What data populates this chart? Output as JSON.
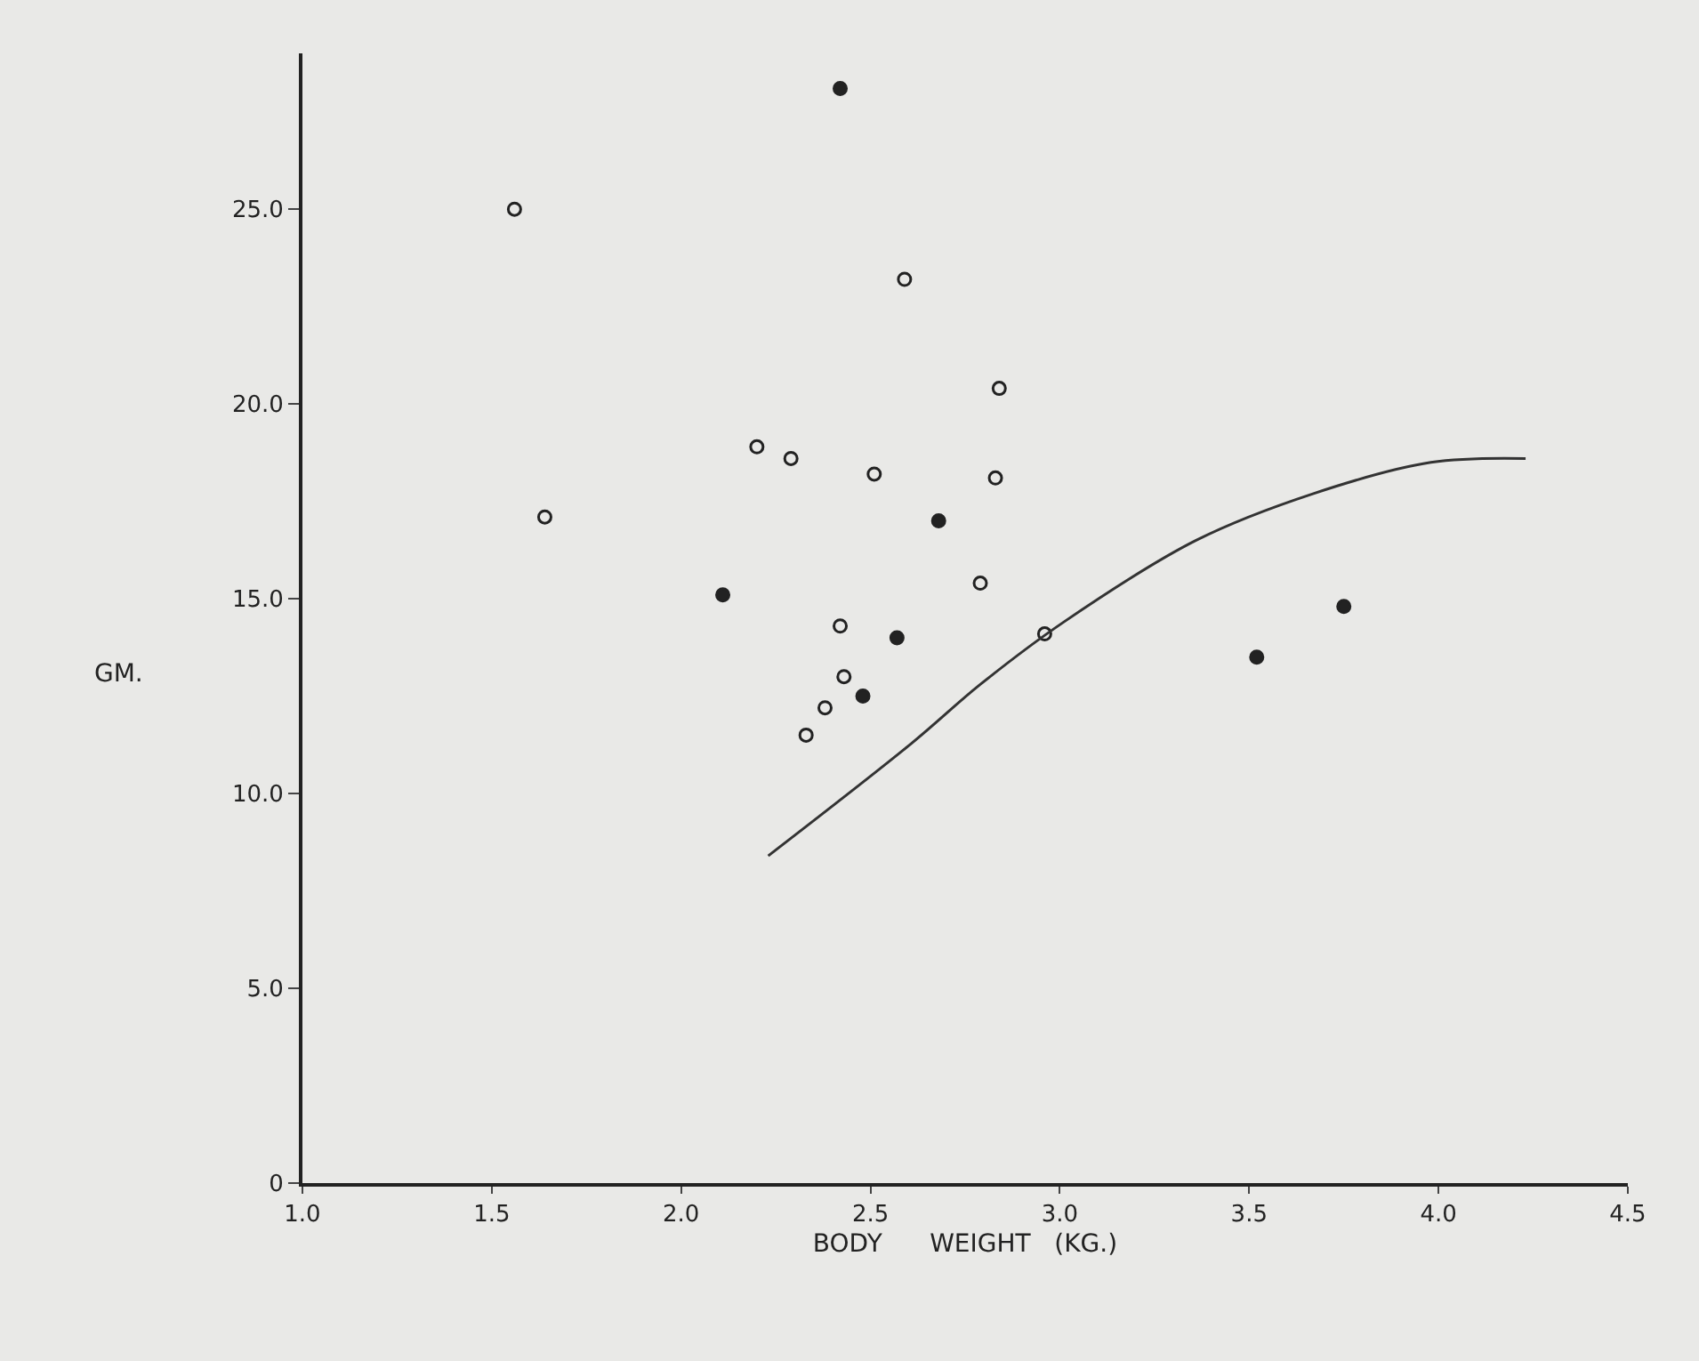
{
  "chart_data": {
    "type": "scatter",
    "xlabel": "BODY      WEIGHT   (KG.)",
    "ylabel": "GM.",
    "xlim": [
      1.0,
      4.5
    ],
    "ylim": [
      0,
      29
    ],
    "xticks": [
      {
        "value": 1.0,
        "label": "1.0"
      },
      {
        "value": 1.5,
        "label": "1.5"
      },
      {
        "value": 2.0,
        "label": "2.0"
      },
      {
        "value": 2.5,
        "label": "2.5"
      },
      {
        "value": 3.0,
        "label": "3.0"
      },
      {
        "value": 3.5,
        "label": "3.5"
      },
      {
        "value": 4.0,
        "label": "4.0"
      },
      {
        "value": 4.5,
        "label": "4.5"
      }
    ],
    "yticks": [
      0,
      {
        "value": 5,
        "label": "5.0"
      },
      {
        "value": 10,
        "label": "10.0"
      },
      {
        "value": 15,
        "label": "15.0"
      },
      {
        "value": 20,
        "label": "20.0"
      },
      {
        "value": 25,
        "label": "25.0"
      }
    ],
    "grid": false,
    "legend": false,
    "series": [
      {
        "marker": "circle-open",
        "color": "#222222",
        "x": [
          1.56,
          1.64,
          2.2,
          2.29,
          2.59,
          2.84,
          2.51,
          2.83,
          2.42,
          2.79,
          2.96,
          2.43,
          2.38,
          2.33
        ],
        "values": [
          25.0,
          17.1,
          18.9,
          18.6,
          23.2,
          20.4,
          18.2,
          18.1,
          14.3,
          15.4,
          14.1,
          13.0,
          12.2,
          11.5
        ]
      },
      {
        "marker": "circle",
        "color": "#222222",
        "x": [
          2.42,
          2.11,
          2.68,
          2.57,
          2.48,
          3.52,
          3.75
        ],
        "values": [
          28.1,
          15.1,
          17.0,
          14.0,
          12.5,
          13.5,
          14.8
        ]
      },
      {
        "type": "line",
        "marker": "none",
        "line_style": "solid",
        "color": "#333333",
        "x": [
          2.23,
          2.61,
          2.79,
          3.01,
          3.36,
          3.67,
          3.98,
          4.23
        ],
        "values": [
          8.4,
          11.3,
          12.8,
          14.4,
          16.5,
          17.7,
          18.5,
          18.6
        ]
      }
    ]
  }
}
